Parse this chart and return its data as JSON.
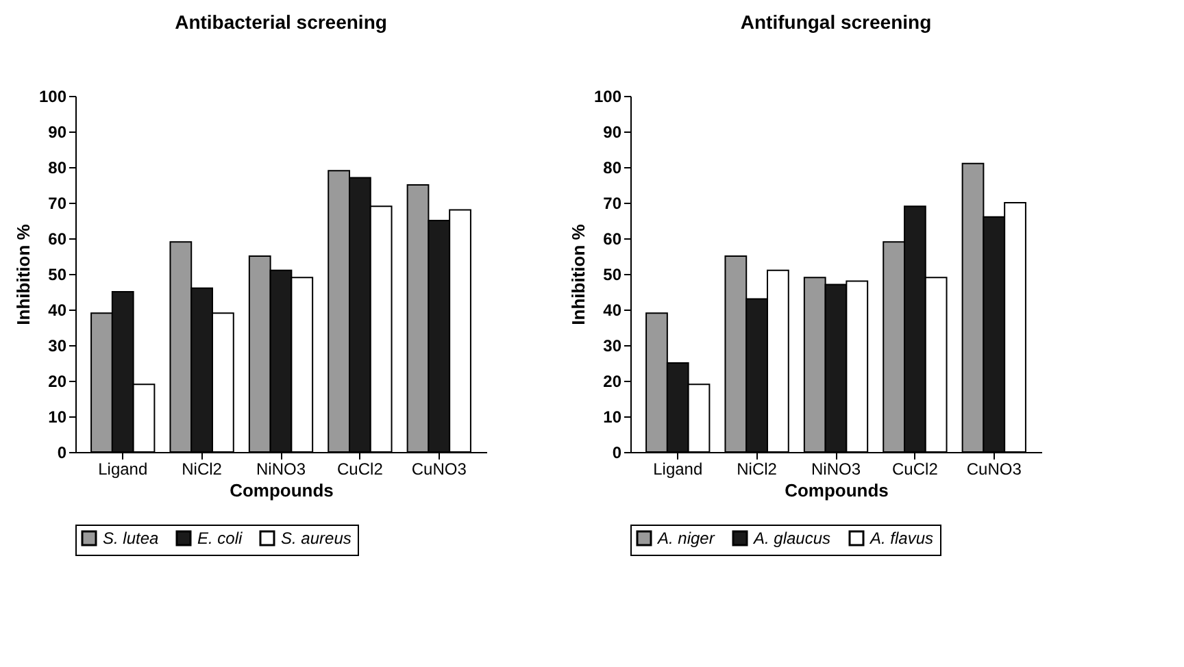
{
  "chart_data": [
    {
      "type": "bar",
      "title": "Antibacterial screening",
      "xlabel": "Compounds",
      "ylabel": "Inhibition %",
      "categories": [
        "Ligand",
        "NiCl2",
        "NiNO3",
        "CuCl2",
        "CuNO3"
      ],
      "ylim": [
        0,
        100
      ],
      "yticks": [
        0,
        10,
        20,
        30,
        40,
        50,
        60,
        70,
        80,
        90,
        100
      ],
      "grid": false,
      "legend": "bottom",
      "series": [
        {
          "name": "S. lutea",
          "color": "#9a9a9a",
          "values": [
            39,
            59,
            55,
            79,
            75
          ]
        },
        {
          "name": "E. coli",
          "color": "#1a1a1a",
          "values": [
            45,
            46,
            51,
            77,
            65
          ]
        },
        {
          "name": "S. aureus",
          "color": "#ffffff",
          "values": [
            19,
            39,
            49,
            69,
            68
          ]
        }
      ]
    },
    {
      "type": "bar",
      "title": "Antifungal screening",
      "xlabel": "Compounds",
      "ylabel": "Inhibition %",
      "categories": [
        "Ligand",
        "NiCl2",
        "NiNO3",
        "CuCl2",
        "CuNO3"
      ],
      "ylim": [
        0,
        100
      ],
      "yticks": [
        0,
        10,
        20,
        30,
        40,
        50,
        60,
        70,
        80,
        90,
        100
      ],
      "grid": false,
      "legend": "bottom",
      "series": [
        {
          "name": "A. niger",
          "color": "#9a9a9a",
          "values": [
            39,
            55,
            49,
            59,
            81
          ]
        },
        {
          "name": "A. glaucus",
          "color": "#1a1a1a",
          "values": [
            25,
            43,
            47,
            69,
            66
          ]
        },
        {
          "name": "A. flavus",
          "color": "#ffffff",
          "values": [
            19,
            51,
            48,
            49,
            70
          ]
        }
      ]
    }
  ]
}
